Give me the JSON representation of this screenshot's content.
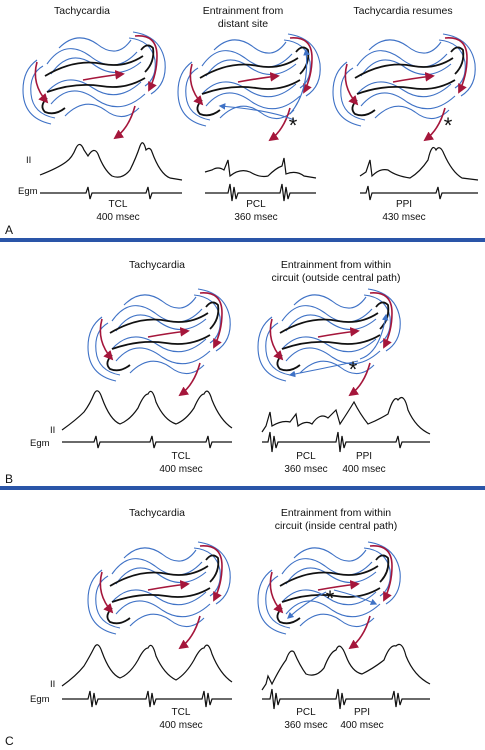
{
  "panel_a": {
    "letter": "A",
    "titles": [
      "Tachycardia",
      "Entrainment from",
      "distant site",
      "Tachycardia resumes"
    ],
    "lead_labels": [
      "II",
      "Egm"
    ],
    "measurements": [
      "TCL",
      "400 msec",
      "PCL",
      "360 msec",
      "PPI",
      "430 msec"
    ],
    "stars": [
      "*",
      "*"
    ]
  },
  "panel_b": {
    "letter": "B",
    "titles": [
      "Tachycardia",
      "Entrainment from within",
      "circuit (outside central path)"
    ],
    "lead_labels": [
      "II",
      "Egm"
    ],
    "measurements": [
      "TCL",
      "400 msec",
      "PCL",
      "360 msec",
      "PPI",
      "400 msec"
    ],
    "stars": [
      "*"
    ]
  },
  "panel_c": {
    "letter": "C",
    "titles": [
      "Tachycardia",
      "Entrainment from within",
      "circuit (inside central path)"
    ],
    "lead_labels": [
      "II",
      "Egm"
    ],
    "measurements": [
      "TCL",
      "400 msec",
      "PCL",
      "360 msec",
      "PPI",
      "400 msec"
    ],
    "stars": [
      "*"
    ]
  },
  "colors": {
    "wavefront_blue": "#3f72c6",
    "arrow_red": "#a5163b",
    "separator": "#2a55a8"
  }
}
